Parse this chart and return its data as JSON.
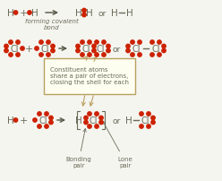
{
  "bg_color": "#f5f5f0",
  "text_color": "#6b6b5a",
  "dot_color": "#cc2200",
  "box_edge_color": "#b8a060",
  "box_face_color": "#fdfdf0",
  "row1_label": "forming covalent\nbond",
  "box_text": "Constituent atoms\nshare a pair of electrons,\nclosing the shell for each",
  "bonding_pair_label": "Bonding\npair",
  "lone_pair_label": "Lone\npair",
  "arrow_color": "#555544"
}
